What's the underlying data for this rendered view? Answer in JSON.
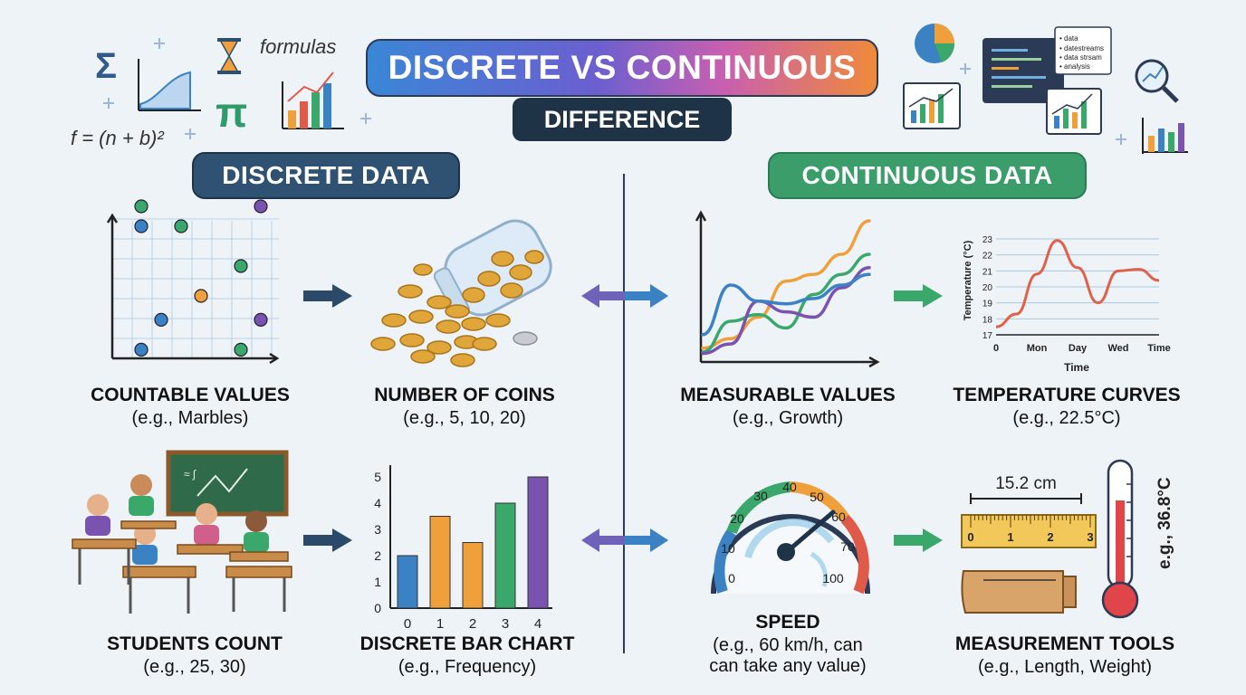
{
  "header": {
    "title": "DISCRETE VS CONTINUOUS",
    "subtitle": "DIFFERENCE",
    "deco_formula": "f = (n + b)²",
    "deco_formulas_word": "formulas",
    "deco_sigma": "Σ",
    "deco_pi": "π",
    "deco_data_lines": [
      "• data",
      "• datestreams",
      "• data strsam",
      "• analysis"
    ]
  },
  "sections": {
    "discrete": "DISCRETE DATA",
    "continuous": "CONTINUOUS DATA"
  },
  "discrete": {
    "countable": {
      "title": "COUNTABLE VALUES",
      "sub": "(e.g., Marbles)"
    },
    "coins": {
      "title": "NUMBER OF COINS",
      "sub": "(e.g., 5, 10, 20)"
    },
    "students": {
      "title": "STUDENTS COUNT",
      "sub": "(e.g., 25, 30)"
    },
    "bar_chart": {
      "title": "DISCRETE BAR CHART",
      "sub": "(e.g., Frequency)"
    }
  },
  "continuous": {
    "measurable": {
      "title": "MEASURABLE VALUES",
      "sub": "(e.g., Growth)"
    },
    "temperature": {
      "title": "TEMPERATURE CURVES",
      "sub": "(e.g., 22.5°C)"
    },
    "speed": {
      "title": "SPEED",
      "sub_line1": "(e.g., 60 km/h, can",
      "sub_line2": "can take any value)"
    },
    "tools": {
      "title": "MEASUREMENT TOOLS",
      "sub": "(e.g., Length, Weight)"
    }
  },
  "gauge": {
    "ticks": [
      "0",
      "10",
      "20",
      "30",
      "40",
      "50",
      "60",
      "70",
      "100"
    ]
  },
  "ruler": {
    "label": "15.2 cm",
    "ticks": [
      "0",
      "1",
      "2",
      "3"
    ]
  },
  "thermometer": {
    "label": "e.g., 36.8°C"
  },
  "chart_data": [
    {
      "type": "bar",
      "categories": [
        "0",
        "1",
        "2",
        "3",
        "4"
      ],
      "values": [
        2,
        3.5,
        2.5,
        4,
        5
      ],
      "colors": [
        "#3b82c4",
        "#f0a03a",
        "#f0a03a",
        "#3aa86a",
        "#7a52b0"
      ],
      "ylim": [
        0,
        5
      ],
      "yticks": [
        "0",
        "1",
        "2",
        "3",
        "4",
        "5"
      ]
    },
    {
      "type": "line",
      "xlabel": "Time",
      "ylabel": "Temperature (°C)",
      "xticks": [
        "0",
        "Mon",
        "Day",
        "Wed",
        "Time"
      ],
      "yticks": [
        "17",
        "18",
        "19",
        "20",
        "21",
        "22",
        "23"
      ],
      "ylim": [
        17,
        23
      ],
      "x": [
        0,
        0.5,
        1,
        1.5,
        2,
        2.5,
        3,
        3.5,
        4
      ],
      "y": [
        17.5,
        18.3,
        20.8,
        22.9,
        21.2,
        19.0,
        21.0,
        21.1,
        20.4
      ]
    },
    {
      "type": "scatter",
      "points": [
        {
          "x": 1,
          "y": 8,
          "color": "#3aa86a"
        },
        {
          "x": 1,
          "y": 7,
          "color": "#3b82c4"
        },
        {
          "x": 3,
          "y": 7,
          "color": "#3aa86a"
        },
        {
          "x": 7,
          "y": 8,
          "color": "#7a52b0"
        },
        {
          "x": 6,
          "y": 5,
          "color": "#3aa86a"
        },
        {
          "x": 4,
          "y": 3.5,
          "color": "#f0a03a"
        },
        {
          "x": 2,
          "y": 2.3,
          "color": "#3b82c4"
        },
        {
          "x": 7,
          "y": 2.3,
          "color": "#7a52b0"
        },
        {
          "x": 1,
          "y": 0.8,
          "color": "#3b82c4"
        },
        {
          "x": 6,
          "y": 0.8,
          "color": "#3aa86a"
        }
      ]
    },
    {
      "type": "line",
      "series": [
        {
          "color": "#f0a03a",
          "values": [
            0.5,
            1.2,
            2.8,
            5.5,
            6.0,
            7.5,
            10.0
          ]
        },
        {
          "color": "#3aa86a",
          "values": [
            0.2,
            2.5,
            3.0,
            2.0,
            4.5,
            6.0,
            7.5
          ]
        },
        {
          "color": "#7a52b0",
          "values": [
            0.1,
            0.8,
            4.0,
            3.2,
            2.8,
            5.0,
            6.5
          ]
        },
        {
          "color": "#3b82c4",
          "values": [
            1.5,
            5.2,
            4.0,
            3.8,
            4.2,
            5.2,
            6.0
          ]
        }
      ]
    }
  ]
}
